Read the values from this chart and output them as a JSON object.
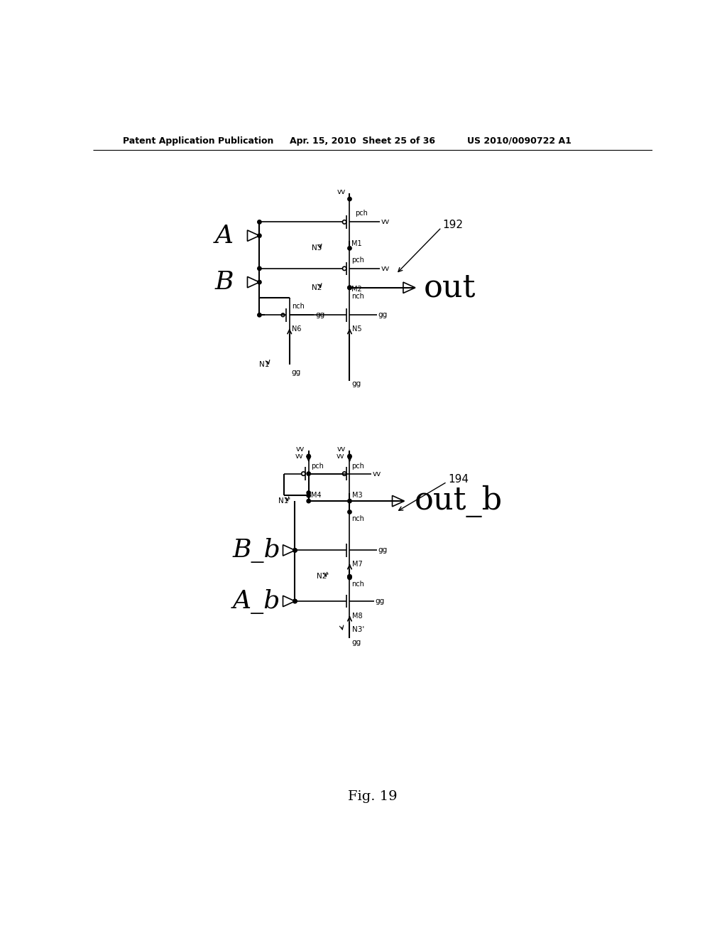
{
  "header_left": "Patent Application Publication",
  "header_mid": "Apr. 15, 2010  Sheet 25 of 36",
  "header_right": "US 2010/0090722 A1",
  "fig_label": "Fig. 19",
  "bg_color": "#ffffff"
}
